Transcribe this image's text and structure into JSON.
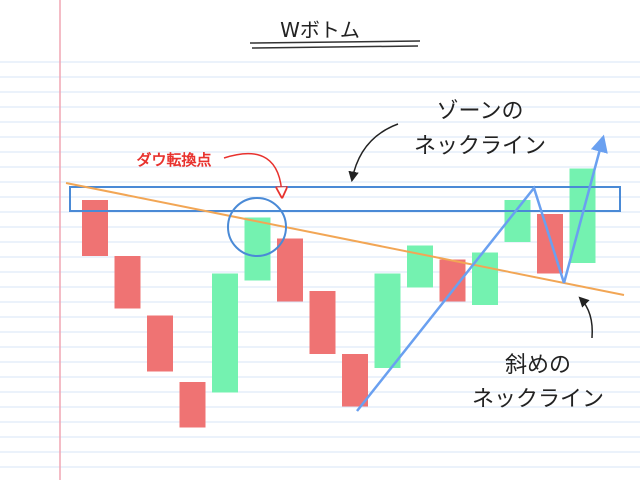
{
  "chart_data": {
    "type": "candlestick",
    "title": "Wボトム",
    "annotations": {
      "dow_turn": "ダウ転換点",
      "zone_neckline_line1": "ゾーンの",
      "zone_neckline_line2": "ネックライン",
      "slanted_neckline_line1": "斜めの",
      "slanted_neckline_line2": "ネックライン"
    },
    "candles": [
      {
        "dir": "down",
        "high": 10.0,
        "low": 2.0
      },
      {
        "dir": "down",
        "high": 2.0,
        "low": -5.5
      },
      {
        "dir": "down",
        "high": -6.5,
        "low": -14.5
      },
      {
        "dir": "down",
        "high": -16.0,
        "low": -22.5
      },
      {
        "dir": "up",
        "high": -0.5,
        "low": -17.5
      },
      {
        "dir": "up",
        "high": 7.5,
        "low": -1.5
      },
      {
        "dir": "down",
        "high": 4.5,
        "low": -4.5
      },
      {
        "dir": "down",
        "high": -3.0,
        "low": -12.0
      },
      {
        "dir": "down",
        "high": -12.0,
        "low": -19.5
      },
      {
        "dir": "up",
        "high": -0.5,
        "low": -14.0
      },
      {
        "dir": "up",
        "high": 3.5,
        "low": -2.5
      },
      {
        "dir": "down",
        "high": 1.5,
        "low": -4.5
      },
      {
        "dir": "up",
        "high": 2.5,
        "low": -5.0
      },
      {
        "dir": "up",
        "high": 10.0,
        "low": 4.0
      },
      {
        "dir": "down",
        "high": 8.0,
        "low": -0.5
      },
      {
        "dir": "up",
        "high": 14.5,
        "low": 1.0
      }
    ],
    "ylim": [
      -25,
      20
    ],
    "colors": {
      "up": "#74f2b0",
      "down": "#ef7373",
      "zone": "#4a8ad6",
      "slanted_line": "#f2a655",
      "trend_arrow": "#6aa0f0",
      "dow_label": "#e8322e",
      "paper_line": "#d7e6f7",
      "margin_line": "#f0a6b4"
    }
  }
}
